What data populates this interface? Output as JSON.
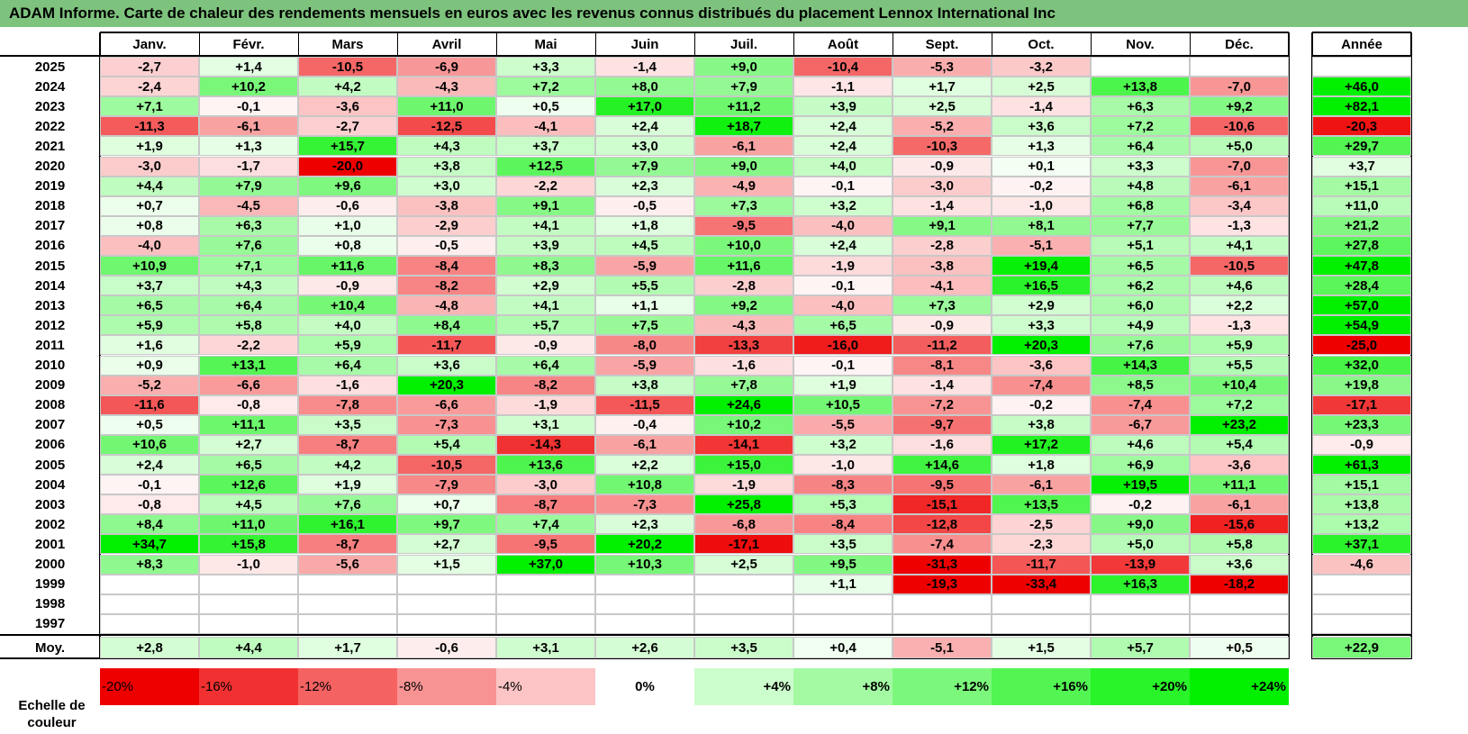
{
  "title": "ADAM Informe. Carte de chaleur des rendements mensuels en euros avec les revenus connus distribués du placement Lennox International Inc",
  "chart_data": {
    "type": "heatmap",
    "title": "ADAM Informe. Carte de chaleur des rendements mensuels en euros avec les revenus connus distribués du placement Lennox International Inc",
    "columns": [
      "Janv.",
      "Févr.",
      "Mars",
      "Avril",
      "Mai",
      "Juin",
      "Juil.",
      "Août",
      "Sept.",
      "Oct.",
      "Nov.",
      "Déc."
    ],
    "year_column_label": "Année",
    "rows": [
      {
        "year": "2025",
        "values": [
          "-2,7",
          "+1,4",
          "-10,5",
          "-6,9",
          "+3,3",
          "-1,4",
          "+9,0",
          "-10,4",
          "-5,3",
          "-3,2",
          "",
          ""
        ],
        "annual": ""
      },
      {
        "year": "2024",
        "values": [
          "-2,4",
          "+10,2",
          "+4,2",
          "-4,3",
          "+7,2",
          "+8,0",
          "+7,9",
          "-1,1",
          "+1,7",
          "+2,5",
          "+13,8",
          "-7,0"
        ],
        "annual": "+46,0"
      },
      {
        "year": "2023",
        "values": [
          "+7,1",
          "-0,1",
          "-3,6",
          "+11,0",
          "+0,5",
          "+17,0",
          "+11,2",
          "+3,9",
          "+2,5",
          "-1,4",
          "+6,3",
          "+9,2"
        ],
        "annual": "+82,1"
      },
      {
        "year": "2022",
        "values": [
          "-11,3",
          "-6,1",
          "-2,7",
          "-12,5",
          "-4,1",
          "+2,4",
          "+18,7",
          "+2,4",
          "-5,2",
          "+3,6",
          "+7,2",
          "-10,6"
        ],
        "annual": "-20,3"
      },
      {
        "year": "2021",
        "values": [
          "+1,9",
          "+1,3",
          "+15,7",
          "+4,3",
          "+3,7",
          "+3,0",
          "-6,1",
          "+2,4",
          "-10,3",
          "+1,3",
          "+6,4",
          "+5,0"
        ],
        "annual": "+29,7"
      },
      {
        "year": "2020",
        "values": [
          "-3,0",
          "-1,7",
          "-20,0",
          "+3,8",
          "+12,5",
          "+7,9",
          "+9,0",
          "+4,0",
          "-0,9",
          "+0,1",
          "+3,3",
          "-7,0"
        ],
        "annual": "+3,7"
      },
      {
        "year": "2019",
        "values": [
          "+4,4",
          "+7,9",
          "+9,6",
          "+3,0",
          "-2,2",
          "+2,3",
          "-4,9",
          "-0,1",
          "-3,0",
          "-0,2",
          "+4,8",
          "-6,1"
        ],
        "annual": "+15,1"
      },
      {
        "year": "2018",
        "values": [
          "+0,7",
          "-4,5",
          "-0,6",
          "-3,8",
          "+9,1",
          "-0,5",
          "+7,3",
          "+3,2",
          "-1,4",
          "-1,0",
          "+6,8",
          "-3,4"
        ],
        "annual": "+11,0"
      },
      {
        "year": "2017",
        "values": [
          "+0,8",
          "+6,3",
          "+1,0",
          "-2,9",
          "+4,1",
          "+1,8",
          "-9,5",
          "-4,0",
          "+9,1",
          "+8,1",
          "+7,7",
          "-1,3"
        ],
        "annual": "+21,2"
      },
      {
        "year": "2016",
        "values": [
          "-4,0",
          "+7,6",
          "+0,8",
          "-0,5",
          "+3,9",
          "+4,5",
          "+10,0",
          "+2,4",
          "-2,8",
          "-5,1",
          "+5,1",
          "+4,1"
        ],
        "annual": "+27,8"
      },
      {
        "year": "2015",
        "values": [
          "+10,9",
          "+7,1",
          "+11,6",
          "-8,4",
          "+8,3",
          "-5,9",
          "+11,6",
          "-1,9",
          "-3,8",
          "+19,4",
          "+6,5",
          "-10,5"
        ],
        "annual": "+47,8"
      },
      {
        "year": "2014",
        "values": [
          "+3,7",
          "+4,3",
          "-0,9",
          "-8,2",
          "+2,9",
          "+5,5",
          "-2,8",
          "-0,1",
          "-4,1",
          "+16,5",
          "+6,2",
          "+4,6"
        ],
        "annual": "+28,4"
      },
      {
        "year": "2013",
        "values": [
          "+6,5",
          "+6,4",
          "+10,4",
          "-4,8",
          "+4,1",
          "+1,1",
          "+9,2",
          "-4,0",
          "+7,3",
          "+2,9",
          "+6,0",
          "+2,2"
        ],
        "annual": "+57,0"
      },
      {
        "year": "2012",
        "values": [
          "+5,9",
          "+5,8",
          "+4,0",
          "+8,4",
          "+5,7",
          "+7,5",
          "-4,3",
          "+6,5",
          "-0,9",
          "+3,3",
          "+4,9",
          "-1,3"
        ],
        "annual": "+54,9"
      },
      {
        "year": "2011",
        "values": [
          "+1,6",
          "-2,2",
          "+5,9",
          "-11,7",
          "-0,9",
          "-8,0",
          "-13,3",
          "-16,0",
          "-11,2",
          "+20,3",
          "+7,6",
          "+5,9"
        ],
        "annual": "-25,0"
      },
      {
        "year": "2010",
        "values": [
          "+0,9",
          "+13,1",
          "+6,4",
          "+3,6",
          "+6,4",
          "-5,9",
          "-1,6",
          "-0,1",
          "-8,1",
          "-3,6",
          "+14,3",
          "+5,5"
        ],
        "annual": "+32,0"
      },
      {
        "year": "2009",
        "values": [
          "-5,2",
          "-6,6",
          "-1,6",
          "+20,3",
          "-8,2",
          "+3,8",
          "+7,8",
          "+1,9",
          "-1,4",
          "-7,4",
          "+8,5",
          "+10,4"
        ],
        "annual": "+19,8"
      },
      {
        "year": "2008",
        "values": [
          "-11,6",
          "-0,8",
          "-7,8",
          "-6,6",
          "-1,9",
          "-11,5",
          "+24,6",
          "+10,5",
          "-7,2",
          "-0,2",
          "-7,4",
          "+7,2"
        ],
        "annual": "-17,1"
      },
      {
        "year": "2007",
        "values": [
          "+0,5",
          "+11,1",
          "+3,5",
          "-7,3",
          "+3,1",
          "-0,4",
          "+10,2",
          "-5,5",
          "-9,7",
          "+3,8",
          "-6,7",
          "+23,2"
        ],
        "annual": "+23,3"
      },
      {
        "year": "2006",
        "values": [
          "+10,6",
          "+2,7",
          "-8,7",
          "+5,4",
          "-14,3",
          "-6,1",
          "-14,1",
          "+3,2",
          "-1,6",
          "+17,2",
          "+4,6",
          "+5,4"
        ],
        "annual": "-0,9"
      },
      {
        "year": "2005",
        "values": [
          "+2,4",
          "+6,5",
          "+4,2",
          "-10,5",
          "+13,6",
          "+2,2",
          "+15,0",
          "-1,0",
          "+14,6",
          "+1,8",
          "+6,9",
          "-3,6"
        ],
        "annual": "+61,3"
      },
      {
        "year": "2004",
        "values": [
          "-0,1",
          "+12,6",
          "+1,9",
          "-7,9",
          "-3,0",
          "+10,8",
          "-1,9",
          "-8,3",
          "-9,5",
          "-6,1",
          "+19,5",
          "+11,1"
        ],
        "annual": "+15,1"
      },
      {
        "year": "2003",
        "values": [
          "-0,8",
          "+4,5",
          "+7,6",
          "+0,7",
          "-8,7",
          "-7,3",
          "+25,8",
          "+5,3",
          "-15,1",
          "+13,5",
          "-0,2",
          "-6,1"
        ],
        "annual": "+13,8"
      },
      {
        "year": "2002",
        "values": [
          "+8,4",
          "+11,0",
          "+16,1",
          "+9,7",
          "+7,4",
          "+2,3",
          "-6,8",
          "-8,4",
          "-12,8",
          "-2,5",
          "+9,0",
          "-15,6"
        ],
        "annual": "+13,2"
      },
      {
        "year": "2001",
        "values": [
          "+34,7",
          "+15,8",
          "-8,7",
          "+2,7",
          "-9,5",
          "+20,2",
          "-17,1",
          "+3,5",
          "-7,4",
          "-2,3",
          "+5,0",
          "+5,8"
        ],
        "annual": "+37,1"
      },
      {
        "year": "2000",
        "values": [
          "+8,3",
          "-1,0",
          "-5,6",
          "+1,5",
          "+37,0",
          "+10,3",
          "+2,5",
          "+9,5",
          "-31,3",
          "-11,7",
          "-13,9",
          "+3,6"
        ],
        "annual": "-4,6"
      },
      {
        "year": "1999",
        "values": [
          "",
          "",
          "",
          "",
          "",
          "",
          "",
          "+1,1",
          "-19,3",
          "-33,4",
          "+16,3",
          "-18,2"
        ],
        "annual": ""
      },
      {
        "year": "1998",
        "values": [
          "",
          "",
          "",
          "",
          "",
          "",
          "",
          "",
          "",
          "",
          "",
          ""
        ],
        "annual": ""
      },
      {
        "year": "1997",
        "values": [
          "",
          "",
          "",
          "",
          "",
          "",
          "",
          "",
          "",
          "",
          "",
          ""
        ],
        "annual": ""
      }
    ],
    "average": {
      "label": "Moy.",
      "values": [
        "+2,8",
        "+4,4",
        "+1,7",
        "-0,6",
        "+3,1",
        "+2,6",
        "+3,5",
        "+0,4",
        "-5,1",
        "+1,5",
        "+5,7",
        "+0,5"
      ],
      "annual": "+22,9"
    },
    "color_scale": {
      "label_line1": "Echelle de",
      "label_line2": "couleur",
      "stops": [
        "-20%",
        "-16%",
        "-12%",
        "-8%",
        "-4%",
        "0%",
        "+4%",
        "+8%",
        "+12%",
        "+16%",
        "+20%",
        "+24%"
      ]
    }
  }
}
